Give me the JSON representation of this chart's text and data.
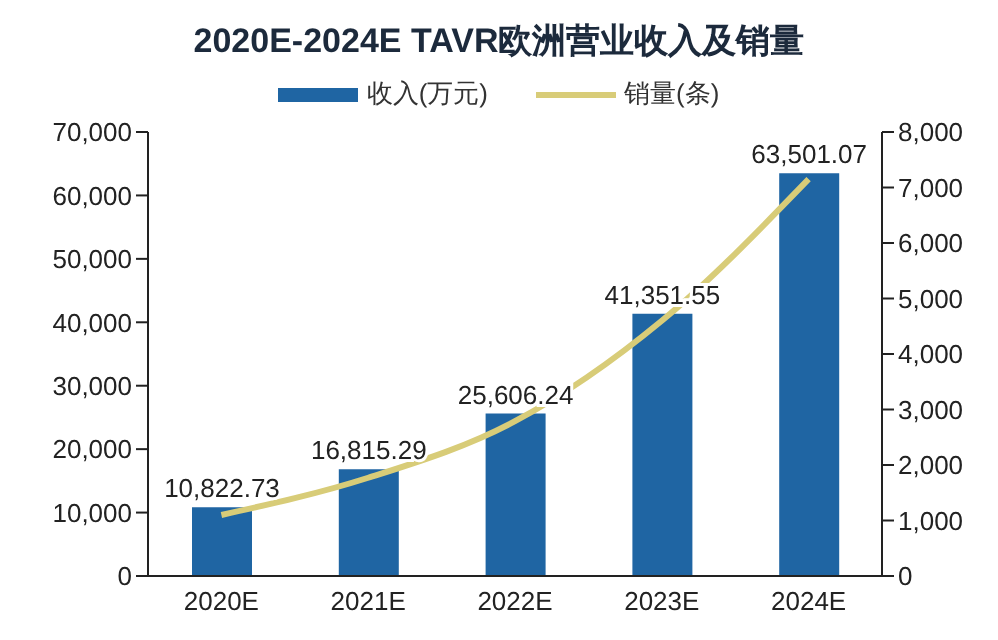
{
  "chart_data": {
    "type": "bar",
    "title": "2020E-2024E TAVR欧洲营业收入及销量",
    "categories": [
      "2020E",
      "2021E",
      "2022E",
      "2023E",
      "2024E"
    ],
    "series": [
      {
        "name": "收入(万元)",
        "color": "#1f65a3",
        "values": [
          10822.73,
          16815.29,
          25606.24,
          41351.55,
          63501.07
        ],
        "value_labels": [
          "10,822.73",
          "16,815.29",
          "25,606.24",
          "41,351.55",
          "63,501.07"
        ]
      },
      {
        "name": "销量(条)",
        "type": "line",
        "axis": "y2",
        "color": "#d8cc78",
        "values": [
          1100,
          1770,
          2790,
          4600,
          7150
        ]
      }
    ],
    "ylim": [
      0,
      70000
    ],
    "yticks": [
      {
        "value": 0,
        "label": "0"
      },
      {
        "value": 10000,
        "label": "10,000"
      },
      {
        "value": 20000,
        "label": "20,000"
      },
      {
        "value": 30000,
        "label": "30,000"
      },
      {
        "value": 40000,
        "label": "40,000"
      },
      {
        "value": 50000,
        "label": "50,000"
      },
      {
        "value": 60000,
        "label": "60,000"
      },
      {
        "value": 70000,
        "label": "70,000"
      }
    ],
    "y2lim": [
      0,
      8000
    ],
    "y2ticks": [
      {
        "value": 0,
        "label": "0"
      },
      {
        "value": 1000,
        "label": "1,000"
      },
      {
        "value": 2000,
        "label": "2,000"
      },
      {
        "value": 3000,
        "label": "3,000"
      },
      {
        "value": 4000,
        "label": "4,000"
      },
      {
        "value": 5000,
        "label": "5,000"
      },
      {
        "value": 6000,
        "label": "6,000"
      },
      {
        "value": 7000,
        "label": "7,000"
      },
      {
        "value": 8000,
        "label": "8,000"
      }
    ],
    "grid": false,
    "legend": "top",
    "marker": "none",
    "line_style": "solid"
  }
}
